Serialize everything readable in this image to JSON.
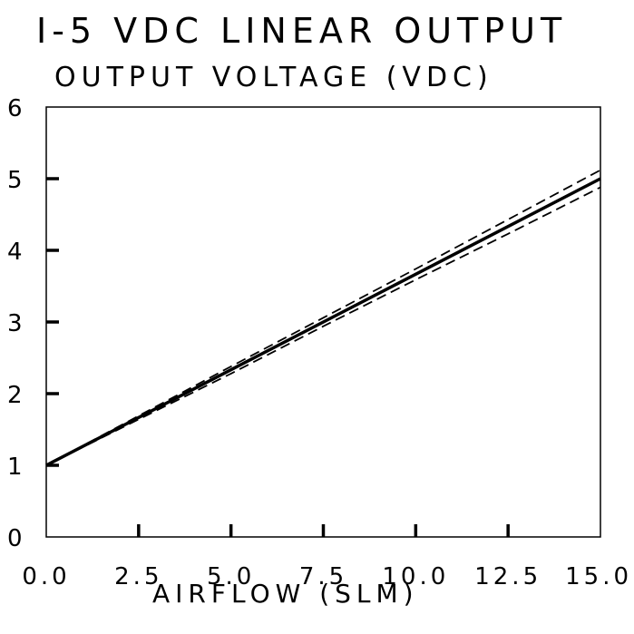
{
  "chart_data": {
    "type": "line",
    "title": "I-5 VDC LINEAR OUTPUT",
    "ylabel": "OUTPUT VOLTAGE (VDC)",
    "xlabel": "AIRFLOW (SLM)",
    "xlim": [
      0,
      15
    ],
    "ylim": [
      0,
      6
    ],
    "x_ticks": [
      0,
      2.5,
      5,
      7.5,
      10,
      12.5,
      15
    ],
    "x_tick_labels": [
      "0.0",
      "2.5",
      "5.0",
      "7.5",
      "10.0",
      "12.5",
      "15.0"
    ],
    "y_ticks": [
      0,
      1,
      2,
      3,
      4,
      5,
      6
    ],
    "y_tick_labels": [
      "0",
      "1",
      "2",
      "3",
      "4",
      "5",
      "6"
    ],
    "grid": false,
    "series": [
      {
        "style": "solid",
        "color": "#000000",
        "x": [
          0,
          15
        ],
        "y": [
          1.0,
          5.0
        ]
      },
      {
        "style": "dashed",
        "color": "#000000",
        "x": [
          0,
          2.5,
          5,
          7.5,
          10,
          12.5,
          15
        ],
        "y": [
          1.0,
          1.69,
          2.38,
          3.06,
          3.74,
          4.43,
          5.12
        ]
      },
      {
        "style": "dashed",
        "color": "#000000",
        "x": [
          0,
          2.5,
          5,
          7.5,
          10,
          12.5,
          15
        ],
        "y": [
          1.0,
          1.64,
          2.28,
          2.94,
          3.59,
          4.23,
          4.88
        ]
      }
    ]
  }
}
